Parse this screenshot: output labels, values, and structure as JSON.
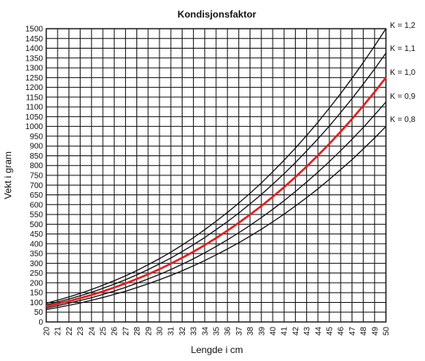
{
  "chart_data": {
    "type": "line",
    "title": "Kondisjonsfaktor",
    "xlabel": "Lengde i cm",
    "ylabel": "Vekt i gram",
    "xlim": [
      20,
      50
    ],
    "ylim": [
      0,
      1500
    ],
    "x_ticks": [
      20,
      21,
      22,
      23,
      24,
      25,
      26,
      27,
      28,
      29,
      30,
      31,
      32,
      33,
      34,
      35,
      36,
      37,
      38,
      39,
      40,
      41,
      42,
      43,
      44,
      45,
      46,
      47,
      48,
      49,
      50
    ],
    "y_ticks": [
      0,
      50,
      100,
      150,
      200,
      250,
      300,
      350,
      400,
      450,
      500,
      550,
      600,
      650,
      700,
      750,
      800,
      850,
      900,
      950,
      1000,
      1050,
      1100,
      1150,
      1200,
      1250,
      1300,
      1350,
      1400,
      1450,
      1500
    ],
    "grid": true,
    "x": [
      20,
      21,
      22,
      23,
      24,
      25,
      26,
      27,
      28,
      29,
      30,
      31,
      32,
      33,
      34,
      35,
      36,
      37,
      38,
      39,
      40,
      41,
      42,
      43,
      44,
      45,
      46,
      47,
      48,
      49,
      50
    ],
    "series": [
      {
        "name": "K = 1,2",
        "color": "#111111",
        "values": [
          96,
          111,
          128,
          146,
          166,
          188,
          211,
          236,
          263,
          293,
          324,
          357,
          393,
          431,
          472,
          515,
          560,
          608,
          658,
          711,
          768,
          827,
          889,
          954,
          1022,
          1094,
          1168,
          1246,
          1327,
          1412,
          1500
        ]
      },
      {
        "name": "K = 1,1",
        "color": "#111111",
        "values": [
          88,
          102,
          117,
          134,
          152,
          172,
          193,
          216,
          241,
          268,
          297,
          327,
          360,
          395,
          432,
          472,
          513,
          557,
          604,
          652,
          704,
          758,
          815,
          875,
          937,
          1002,
          1071,
          1142,
          1217,
          1294,
          1375
        ]
      },
      {
        "name": "K = 1,0",
        "color": "#e02020",
        "highlight": true,
        "values": [
          80,
          93,
          106,
          122,
          138,
          156,
          176,
          197,
          220,
          244,
          270,
          298,
          328,
          359,
          393,
          429,
          467,
          507,
          549,
          593,
          640,
          689,
          741,
          795,
          852,
          911,
          973,
          1038,
          1106,
          1176,
          1250
        ]
      },
      {
        "name": "K = 0,9",
        "color": "#111111",
        "values": [
          72,
          83,
          96,
          110,
          124,
          141,
          158,
          177,
          198,
          220,
          243,
          268,
          295,
          323,
          354,
          386,
          420,
          456,
          494,
          534,
          576,
          620,
          667,
          716,
          767,
          820,
          876,
          934,
          995,
          1059,
          1125
        ]
      },
      {
        "name": "K = 0,8",
        "color": "#111111",
        "values": [
          64,
          74,
          85,
          97,
          111,
          125,
          141,
          157,
          176,
          195,
          216,
          238,
          262,
          287,
          314,
          343,
          373,
          405,
          439,
          474,
          512,
          551,
          593,
          636,
          681,
          729,
          779,
          830,
          885,
          941,
          1000
        ]
      }
    ]
  }
}
